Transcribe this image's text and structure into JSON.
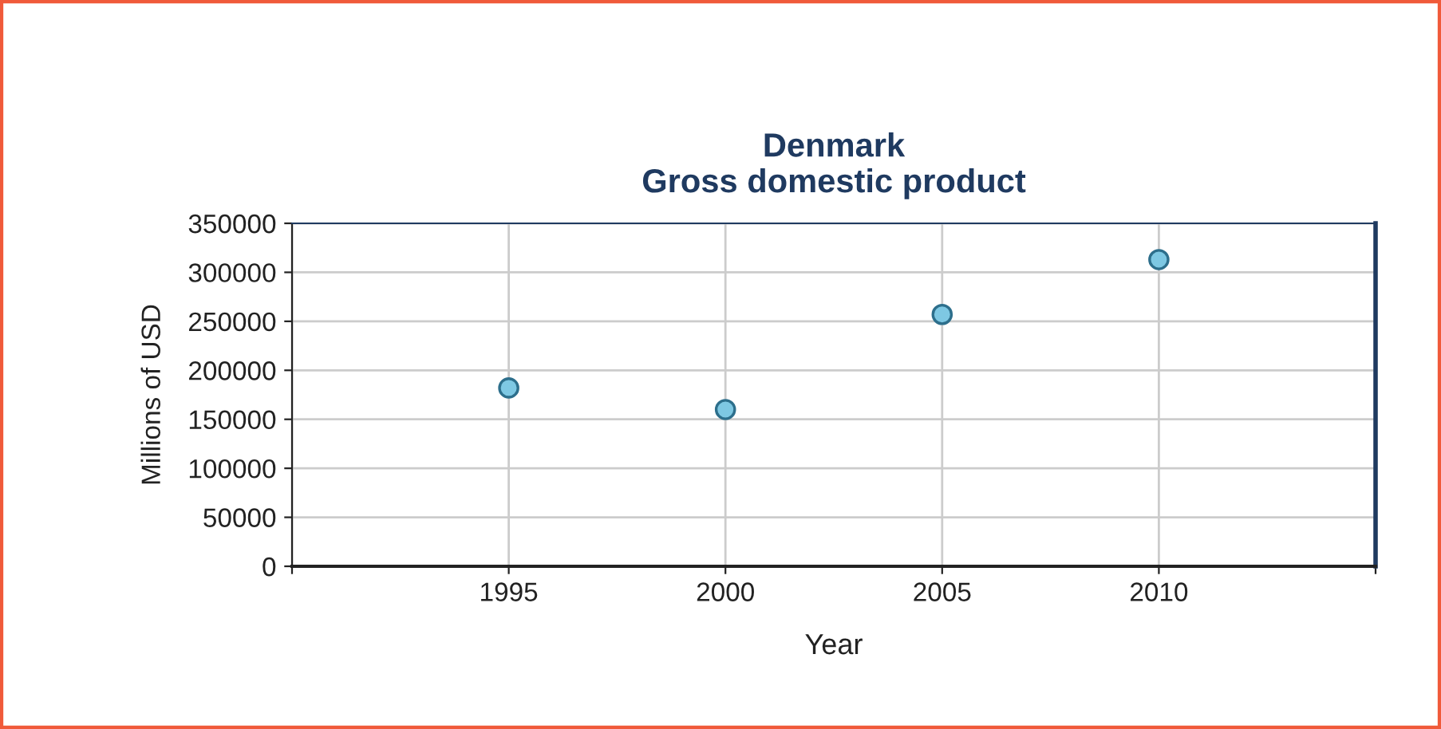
{
  "chart_data": {
    "type": "scatter",
    "title": "Denmark\nGross domestic product",
    "xlabel": "Year",
    "ylabel": "Millions of USD",
    "x": [
      1995,
      2000,
      2005,
      2010
    ],
    "series": [
      {
        "color": "#7ec8e3",
        "values": [
          182000,
          160000,
          257000,
          313000
        ]
      }
    ],
    "xlim": [
      1990,
      2015
    ],
    "xticks": [
      {
        "value": 1990,
        "label": null
      },
      1995,
      2000,
      2005,
      2010,
      {
        "value": 2015,
        "label": null
      }
    ],
    "ylim": [
      0,
      350000
    ],
    "yticks": [
      0,
      50000,
      100000,
      150000,
      200000,
      250000,
      300000,
      350000
    ],
    "grid": true,
    "marker": "circle"
  }
}
